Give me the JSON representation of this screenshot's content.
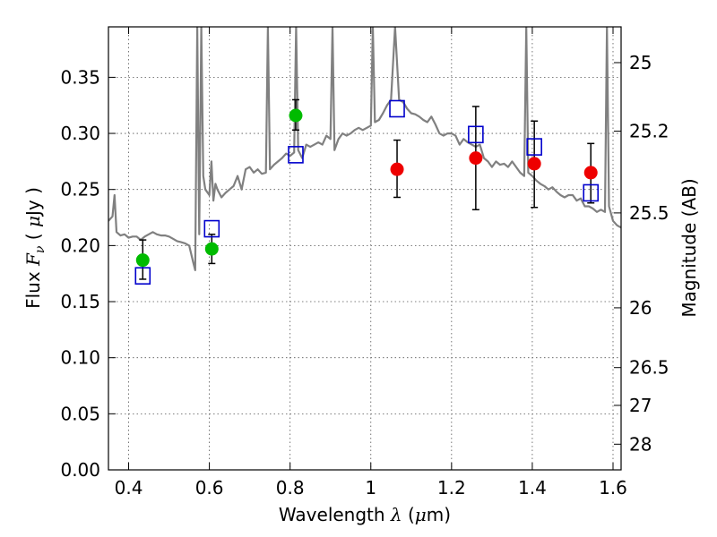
{
  "chart_data": {
    "type": "scatter",
    "xlabel": "Wavelength  λ (μm)",
    "ylabel": "Flux  F_ν  ( μJy )",
    "ylabel_right": "Magnitude (AB)",
    "xlim": [
      0.35,
      1.62
    ],
    "ylim": [
      0.0,
      0.395
    ],
    "grid": true,
    "x_ticks": [
      0.4,
      0.6,
      0.8,
      1.0,
      1.2,
      1.4,
      1.6
    ],
    "x_tick_labels": [
      "0.4",
      "0.6",
      "0.8",
      "1",
      "1.2",
      "1.4",
      "1.6"
    ],
    "y_ticks": [
      0.0,
      0.05,
      0.1,
      0.15,
      0.2,
      0.25,
      0.3,
      0.35
    ],
    "y_tick_labels": [
      "0.00",
      "0.05",
      "0.10",
      "0.15",
      "0.20",
      "0.25",
      "0.30",
      "0.35"
    ],
    "right_ticks": [
      {
        "label": "25",
        "flux": 0.3631
      },
      {
        "label": "25.2",
        "flux": 0.302
      },
      {
        "label": "25.5",
        "flux": 0.2291
      },
      {
        "label": "26",
        "flux": 0.1445
      },
      {
        "label": "26.5",
        "flux": 0.0912
      },
      {
        "label": "27",
        "flux": 0.0575
      },
      {
        "label": "28",
        "flux": 0.0229
      }
    ],
    "colors": {
      "model": "#808080",
      "green_points": "#00bb00",
      "red_points": "#ee0000",
      "squares": "#0000cc",
      "errorbars": "#000000",
      "grid": "#555555"
    },
    "series": [
      {
        "kind": "green_points",
        "points": [
          {
            "x": 0.435,
            "y": 0.187,
            "err_lo": 0.17,
            "err_hi": 0.205
          },
          {
            "x": 0.606,
            "y": 0.197,
            "err_lo": 0.184,
            "err_hi": 0.21
          },
          {
            "x": 0.814,
            "y": 0.316,
            "err_lo": 0.303,
            "err_hi": 0.33
          }
        ]
      },
      {
        "kind": "red_points",
        "points": [
          {
            "x": 1.065,
            "y": 0.268,
            "err_lo": 0.243,
            "err_hi": 0.294
          },
          {
            "x": 1.26,
            "y": 0.278,
            "err_lo": 0.232,
            "err_hi": 0.324
          },
          {
            "x": 1.405,
            "y": 0.273,
            "err_lo": 0.234,
            "err_hi": 0.311
          },
          {
            "x": 1.545,
            "y": 0.265,
            "err_lo": 0.238,
            "err_hi": 0.291
          }
        ]
      },
      {
        "kind": "squares",
        "points": [
          {
            "x": 0.435,
            "y": 0.173
          },
          {
            "x": 0.606,
            "y": 0.215
          },
          {
            "x": 0.814,
            "y": 0.281
          },
          {
            "x": 1.065,
            "y": 0.322
          },
          {
            "x": 1.26,
            "y": 0.299
          },
          {
            "x": 1.405,
            "y": 0.288
          },
          {
            "x": 1.545,
            "y": 0.247
          }
        ]
      },
      {
        "kind": "model",
        "x": [
          0.35,
          0.36,
          0.365,
          0.37,
          0.38,
          0.39,
          0.4,
          0.41,
          0.42,
          0.43,
          0.44,
          0.45,
          0.46,
          0.47,
          0.48,
          0.49,
          0.5,
          0.51,
          0.52,
          0.53,
          0.54,
          0.55,
          0.56,
          0.565,
          0.57,
          0.575,
          0.58,
          0.585,
          0.59,
          0.6,
          0.605,
          0.61,
          0.615,
          0.62,
          0.63,
          0.64,
          0.65,
          0.66,
          0.67,
          0.68,
          0.69,
          0.7,
          0.71,
          0.72,
          0.73,
          0.74,
          0.745,
          0.75,
          0.76,
          0.77,
          0.78,
          0.79,
          0.8,
          0.81,
          0.815,
          0.82,
          0.83,
          0.84,
          0.85,
          0.86,
          0.87,
          0.88,
          0.89,
          0.9,
          0.905,
          0.91,
          0.92,
          0.93,
          0.94,
          0.95,
          0.96,
          0.97,
          0.98,
          0.99,
          1.0,
          1.005,
          1.01,
          1.02,
          1.03,
          1.04,
          1.05,
          1.06,
          1.07,
          1.08,
          1.09,
          1.1,
          1.11,
          1.12,
          1.13,
          1.14,
          1.15,
          1.16,
          1.17,
          1.18,
          1.19,
          1.2,
          1.21,
          1.22,
          1.23,
          1.24,
          1.25,
          1.26,
          1.27,
          1.28,
          1.29,
          1.3,
          1.31,
          1.32,
          1.33,
          1.34,
          1.35,
          1.36,
          1.37,
          1.38,
          1.385,
          1.39,
          1.4,
          1.41,
          1.42,
          1.43,
          1.44,
          1.45,
          1.46,
          1.47,
          1.48,
          1.49,
          1.5,
          1.51,
          1.52,
          1.53,
          1.54,
          1.55,
          1.56,
          1.57,
          1.58,
          1.585,
          1.59,
          1.6,
          1.61,
          1.62
        ],
        "y": [
          0.222,
          0.226,
          0.245,
          0.212,
          0.209,
          0.21,
          0.207,
          0.208,
          0.208,
          0.205,
          0.208,
          0.21,
          0.212,
          0.21,
          0.209,
          0.209,
          0.208,
          0.206,
          0.204,
          0.203,
          0.202,
          0.2,
          0.185,
          0.178,
          0.395,
          0.21,
          0.395,
          0.262,
          0.25,
          0.245,
          0.275,
          0.24,
          0.255,
          0.25,
          0.243,
          0.247,
          0.25,
          0.253,
          0.262,
          0.25,
          0.268,
          0.27,
          0.265,
          0.268,
          0.264,
          0.265,
          0.395,
          0.268,
          0.272,
          0.275,
          0.278,
          0.282,
          0.28,
          0.283,
          0.395,
          0.285,
          0.278,
          0.29,
          0.288,
          0.29,
          0.292,
          0.29,
          0.298,
          0.295,
          0.395,
          0.285,
          0.295,
          0.3,
          0.298,
          0.3,
          0.303,
          0.305,
          0.303,
          0.305,
          0.307,
          0.395,
          0.31,
          0.312,
          0.318,
          0.325,
          0.33,
          0.395,
          0.33,
          0.328,
          0.322,
          0.318,
          0.317,
          0.315,
          0.312,
          0.31,
          0.315,
          0.308,
          0.3,
          0.298,
          0.3,
          0.3,
          0.298,
          0.29,
          0.295,
          0.292,
          0.29,
          0.288,
          0.29,
          0.278,
          0.275,
          0.27,
          0.275,
          0.272,
          0.273,
          0.27,
          0.275,
          0.27,
          0.265,
          0.262,
          0.395,
          0.265,
          0.262,
          0.258,
          0.255,
          0.253,
          0.25,
          0.252,
          0.248,
          0.245,
          0.243,
          0.245,
          0.245,
          0.24,
          0.242,
          0.235,
          0.235,
          0.233,
          0.23,
          0.232,
          0.23,
          0.395,
          0.235,
          0.222,
          0.218,
          0.216
        ]
      }
    ]
  }
}
